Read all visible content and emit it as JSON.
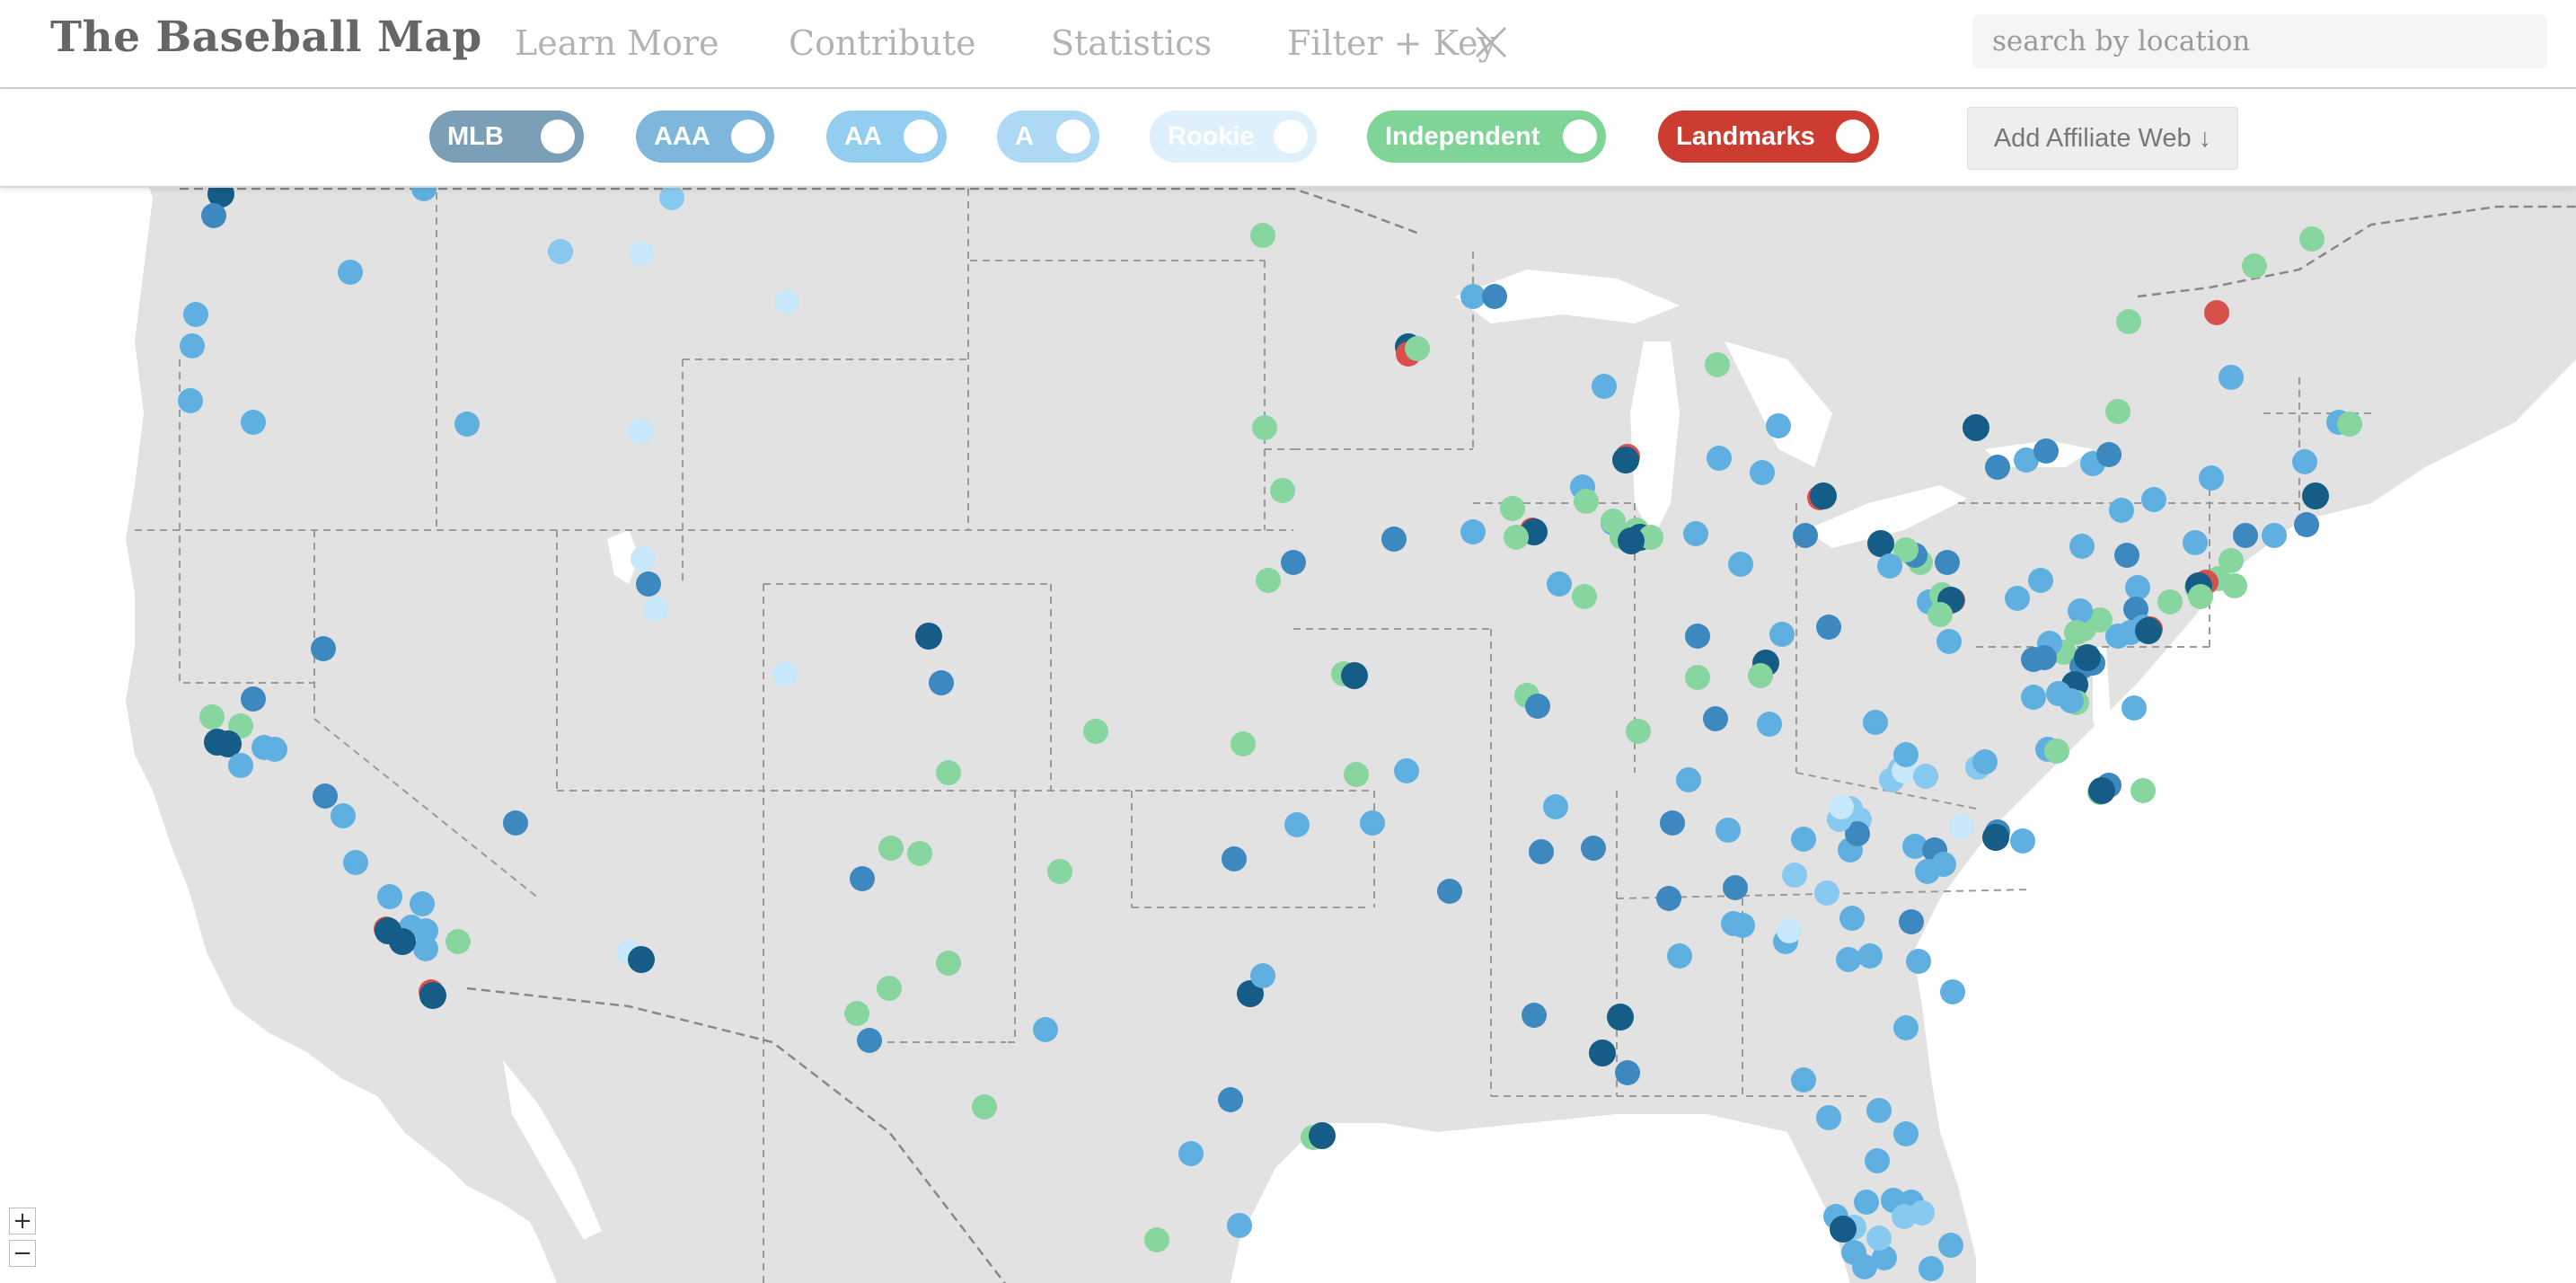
{
  "header": {
    "title": "The Baseball Map",
    "nav": [
      "Learn More",
      "Contribute",
      "Statistics",
      "Filter + Key"
    ],
    "close_icon": "close-x-icon",
    "search_placeholder": "search by location"
  },
  "filters": [
    {
      "label": "MLB",
      "color": "#7a9fb6"
    },
    {
      "label": "AAA",
      "color": "#7fb6dc"
    },
    {
      "label": "AA",
      "color": "#93cdef"
    },
    {
      "label": "A",
      "color": "#add9f4"
    },
    {
      "label": "Rookie",
      "color": "#ddf0fb"
    },
    {
      "label": "Independent",
      "color": "#7fd497"
    },
    {
      "label": "Landmarks",
      "color": "#cd3c30"
    }
  ],
  "affiliate_button": "Add Affiliate Web ↓",
  "zoom": {
    "in": "+",
    "out": "−"
  },
  "colors": {
    "land": "#e2e2e2",
    "water": "#ffffff",
    "border": "#9a9a9a",
    "mlb": "#155c86",
    "aaa": "#3d88bf",
    "aa": "#5fb0e0",
    "a": "#88c9f0",
    "rookie": "#c7e8fa",
    "independent": "#88d69f",
    "landmark": "#d9504a"
  }
}
